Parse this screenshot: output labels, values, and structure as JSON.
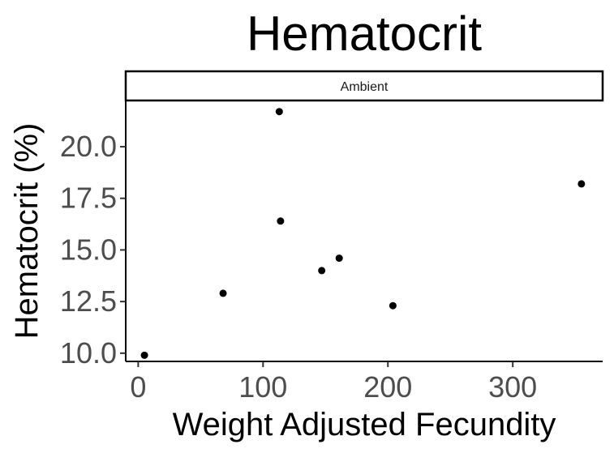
{
  "chart_data": {
    "type": "scatter",
    "title": "Hematocrit",
    "facet_label": "Ambient",
    "xlabel": "Weight Adjusted Fecundity",
    "ylabel": "Hematocrit (%)",
    "xlim": [
      -10,
      372
    ],
    "ylim": [
      9.6,
      22.2
    ],
    "x_ticks": [
      0,
      100,
      200,
      300
    ],
    "y_ticks": [
      10.0,
      12.5,
      15.0,
      17.5,
      20.0
    ],
    "x_tick_labels": [
      "0",
      "100",
      "200",
      "300"
    ],
    "y_tick_labels": [
      "10.0",
      "12.5",
      "15.0",
      "17.5",
      "20.0"
    ],
    "grid": false,
    "point_color": "#000000",
    "points": [
      {
        "x": 5,
        "y": 9.9
      },
      {
        "x": 68,
        "y": 12.9
      },
      {
        "x": 113,
        "y": 21.7
      },
      {
        "x": 114,
        "y": 16.4
      },
      {
        "x": 147,
        "y": 14.0
      },
      {
        "x": 161,
        "y": 14.6
      },
      {
        "x": 204,
        "y": 12.3
      },
      {
        "x": 355,
        "y": 18.2
      }
    ]
  }
}
